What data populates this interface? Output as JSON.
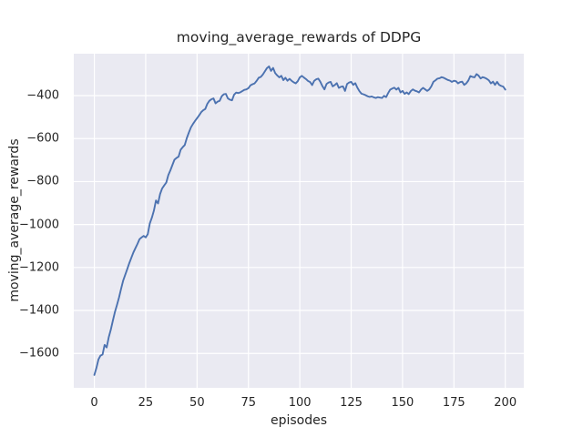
{
  "chart": {
    "title": "moving_average_rewards of DDPG",
    "xlabel": "episodes",
    "ylabel": "moving_average_rewards"
  },
  "chart_data": {
    "type": "line",
    "title": "moving_average_rewards of DDPG",
    "xlabel": "episodes",
    "ylabel": "moving_average_rewards",
    "style": "seaborn-darkgrid",
    "grid": true,
    "legend": "none",
    "xlim": [
      -10,
      209
    ],
    "ylim": [
      -1760,
      -205
    ],
    "x_ticks": [
      0,
      25,
      50,
      75,
      100,
      125,
      150,
      175,
      200
    ],
    "x_tick_labels": [
      "0",
      "25",
      "50",
      "75",
      "100",
      "125",
      "150",
      "175",
      "200"
    ],
    "y_ticks": [
      -400,
      -600,
      -800,
      -1000,
      -1200,
      -1400,
      -1600
    ],
    "y_tick_labels": [
      "−400",
      "−600",
      "−800",
      "−1000",
      "−1200",
      "−1400",
      "−1600"
    ],
    "colors": {
      "figure_bg": "#ffffff",
      "plot_bg": "#eaeaf2",
      "grid": "#ffffff",
      "line": "#4c72b0",
      "text": "#262626"
    },
    "line_width": 1.9,
    "series": [
      {
        "name": "moving_average_rewards",
        "x": [
          0,
          1,
          2,
          3,
          4,
          5,
          6,
          7,
          8,
          9,
          10,
          11,
          12,
          13,
          14,
          15,
          16,
          17,
          18,
          19,
          20,
          21,
          22,
          23,
          24,
          25,
          26,
          27,
          28,
          29,
          30,
          31,
          32,
          33,
          34,
          35,
          36,
          37,
          38,
          39,
          40,
          41,
          42,
          43,
          44,
          45,
          46,
          47,
          48,
          49,
          50,
          51,
          52,
          53,
          54,
          55,
          56,
          57,
          58,
          59,
          60,
          61,
          62,
          63,
          64,
          65,
          66,
          67,
          68,
          69,
          70,
          71,
          72,
          73,
          74,
          75,
          76,
          77,
          78,
          79,
          80,
          81,
          82,
          83,
          84,
          85,
          86,
          87,
          88,
          89,
          90,
          91,
          92,
          93,
          94,
          95,
          96,
          97,
          98,
          99,
          100,
          101,
          102,
          103,
          104,
          105,
          106,
          107,
          108,
          109,
          110,
          111,
          112,
          113,
          114,
          115,
          116,
          117,
          118,
          119,
          120,
          121,
          122,
          123,
          124,
          125,
          126,
          127,
          128,
          129,
          130,
          131,
          132,
          133,
          134,
          135,
          136,
          137,
          138,
          139,
          140,
          141,
          142,
          143,
          144,
          145,
          146,
          147,
          148,
          149,
          150,
          151,
          152,
          153,
          154,
          155,
          156,
          157,
          158,
          159,
          160,
          161,
          162,
          163,
          164,
          165,
          166,
          167,
          168,
          169,
          170,
          171,
          172,
          173,
          174,
          175,
          176,
          177,
          178,
          179,
          180,
          181,
          182,
          183,
          184,
          185,
          186,
          187,
          188,
          189,
          190,
          191,
          192,
          193,
          194,
          195,
          196,
          197,
          198,
          199,
          200
        ],
        "y": [
          -1700,
          -1668,
          -1628,
          -1610,
          -1605,
          -1560,
          -1572,
          -1525,
          -1490,
          -1448,
          -1408,
          -1375,
          -1340,
          -1300,
          -1262,
          -1235,
          -1208,
          -1180,
          -1155,
          -1130,
          -1110,
          -1090,
          -1068,
          -1060,
          -1053,
          -1060,
          -1045,
          -995,
          -968,
          -935,
          -888,
          -902,
          -858,
          -832,
          -818,
          -805,
          -770,
          -748,
          -723,
          -698,
          -690,
          -684,
          -652,
          -640,
          -630,
          -598,
          -572,
          -548,
          -532,
          -518,
          -505,
          -492,
          -477,
          -468,
          -462,
          -438,
          -424,
          -417,
          -413,
          -436,
          -428,
          -424,
          -403,
          -394,
          -392,
          -413,
          -419,
          -422,
          -396,
          -386,
          -388,
          -385,
          -379,
          -373,
          -371,
          -365,
          -352,
          -347,
          -343,
          -331,
          -317,
          -313,
          -302,
          -287,
          -272,
          -264,
          -285,
          -271,
          -295,
          -306,
          -315,
          -308,
          -328,
          -317,
          -331,
          -322,
          -331,
          -338,
          -343,
          -333,
          -315,
          -308,
          -316,
          -323,
          -332,
          -337,
          -351,
          -331,
          -324,
          -321,
          -336,
          -356,
          -371,
          -346,
          -339,
          -336,
          -357,
          -351,
          -342,
          -364,
          -359,
          -357,
          -378,
          -346,
          -339,
          -336,
          -350,
          -342,
          -363,
          -379,
          -391,
          -394,
          -398,
          -403,
          -406,
          -404,
          -408,
          -411,
          -407,
          -409,
          -411,
          -401,
          -407,
          -388,
          -372,
          -367,
          -363,
          -372,
          -364,
          -385,
          -378,
          -392,
          -385,
          -393,
          -379,
          -371,
          -377,
          -380,
          -385,
          -372,
          -364,
          -371,
          -378,
          -371,
          -357,
          -336,
          -329,
          -321,
          -319,
          -314,
          -317,
          -322,
          -327,
          -330,
          -336,
          -331,
          -333,
          -343,
          -337,
          -335,
          -350,
          -343,
          -330,
          -309,
          -313,
          -315,
          -300,
          -307,
          -320,
          -314,
          -317,
          -322,
          -329,
          -343,
          -335,
          -350,
          -336,
          -350,
          -355,
          -358,
          -372
        ]
      }
    ]
  }
}
